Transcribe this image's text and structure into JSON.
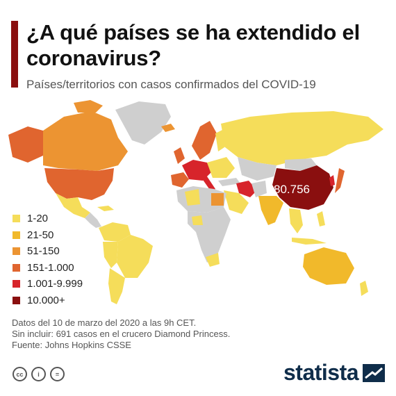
{
  "header": {
    "title": "¿A qué países se ha extendido el coronavirus?",
    "subtitle": "Países/territorios con casos confirmados del COVID-19"
  },
  "map": {
    "china_label": "80.756",
    "country_colors": {
      "no_data": "#cfcfcf",
      "level_1": "#f5dd5a",
      "level_2": "#f1b92b",
      "level_3": "#ec9432",
      "level_4": "#e0652f",
      "level_5": "#d7242b",
      "level_6": "#8a0f0f"
    }
  },
  "legend": {
    "items": [
      {
        "label": "1-20",
        "color": "#f5dd5a"
      },
      {
        "label": "21-50",
        "color": "#f1b92b"
      },
      {
        "label": "51-150",
        "color": "#ec9432"
      },
      {
        "label": "151-1.000",
        "color": "#e0652f"
      },
      {
        "label": "1.001-9.999",
        "color": "#d7242b"
      },
      {
        "label": "10.000+",
        "color": "#8a0f0f"
      }
    ]
  },
  "notes": {
    "line1": "Datos del 10 de marzo del 2020 a las 9h CET.",
    "line2": "Sin incluir: 691 casos en el crucero Diamond Princess.",
    "line3": "Fuente: Johns Hopkins CSSE"
  },
  "footer": {
    "cc_icons": [
      "cc-icon",
      "by-icon",
      "nd-icon"
    ],
    "cc_labels": [
      "cc",
      "i",
      "="
    ],
    "brand": "statista"
  }
}
